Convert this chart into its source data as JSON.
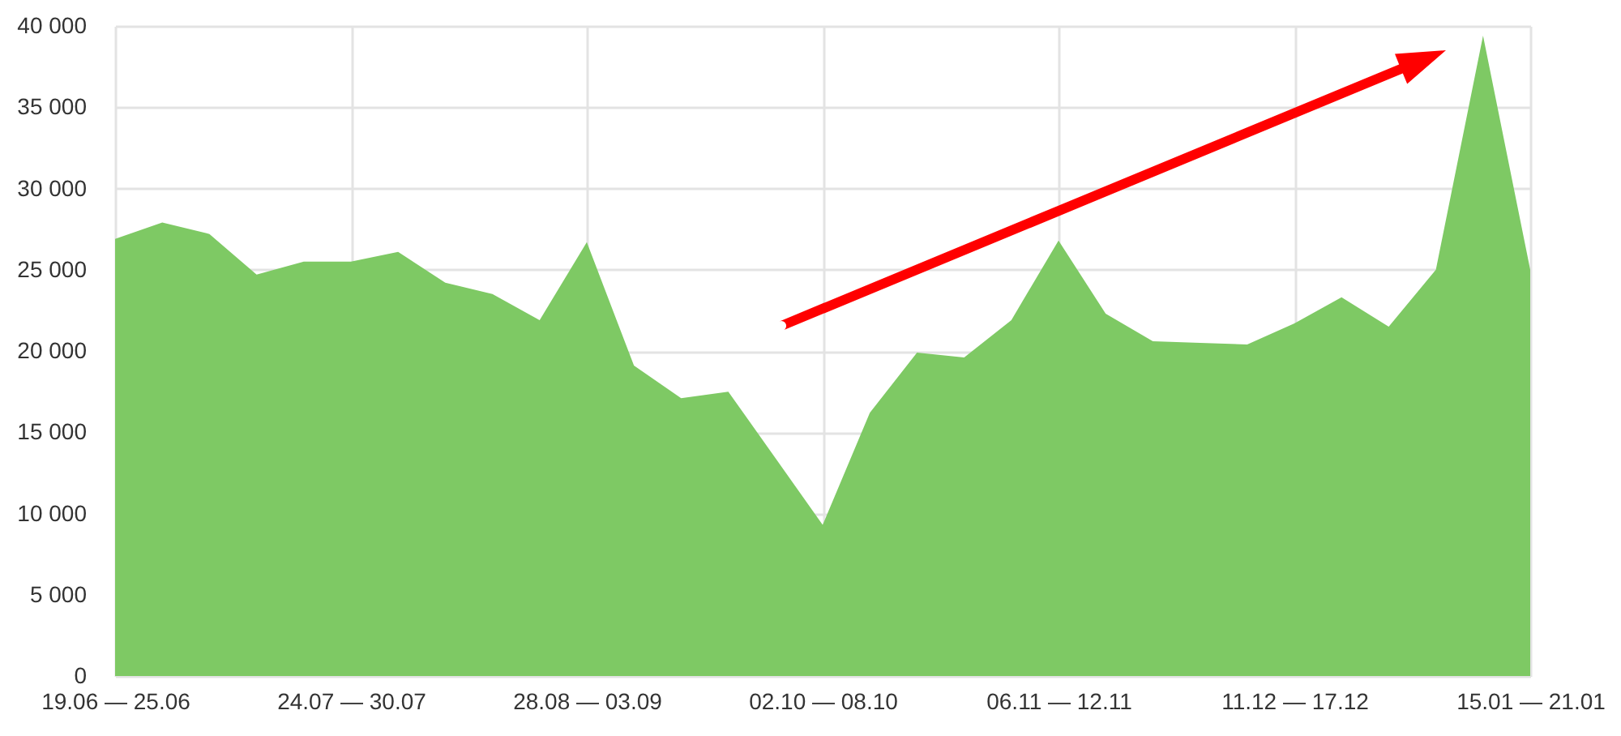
{
  "chart_data": {
    "type": "area",
    "categories": [
      "19.06 — 25.06",
      null,
      null,
      null,
      null,
      "24.07 — 30.07",
      null,
      null,
      null,
      null,
      "28.08 — 03.09",
      null,
      null,
      null,
      null,
      "02.10 — 08.10",
      null,
      null,
      null,
      null,
      "06.11 — 12.11",
      null,
      null,
      null,
      null,
      "11.12 — 17.12",
      null,
      null,
      null,
      null,
      "15.01 — 21.01"
    ],
    "values": [
      26900,
      27900,
      27200,
      24700,
      25500,
      25500,
      26100,
      24200,
      23500,
      21900,
      26700,
      19100,
      17100,
      17500,
      13400,
      9300,
      16200,
      19900,
      19600,
      21900,
      26800,
      22300,
      20600,
      20500,
      20400,
      21700,
      23300,
      21500,
      25000,
      39400,
      25000
    ],
    "color": "#7ec964",
    "ylim": [
      0,
      40000
    ],
    "yticks": [
      0,
      {
        "value": 5000,
        "label": "5 000"
      },
      {
        "value": 10000,
        "label": "10 000"
      },
      {
        "value": 15000,
        "label": "15 000"
      },
      {
        "value": 20000,
        "label": "20 000"
      },
      {
        "value": 25000,
        "label": "25 000"
      },
      {
        "value": 30000,
        "label": "30 000"
      },
      {
        "value": 35000,
        "label": "35 000"
      },
      {
        "value": 40000,
        "label": "40 000"
      }
    ],
    "grid": true
  }
}
